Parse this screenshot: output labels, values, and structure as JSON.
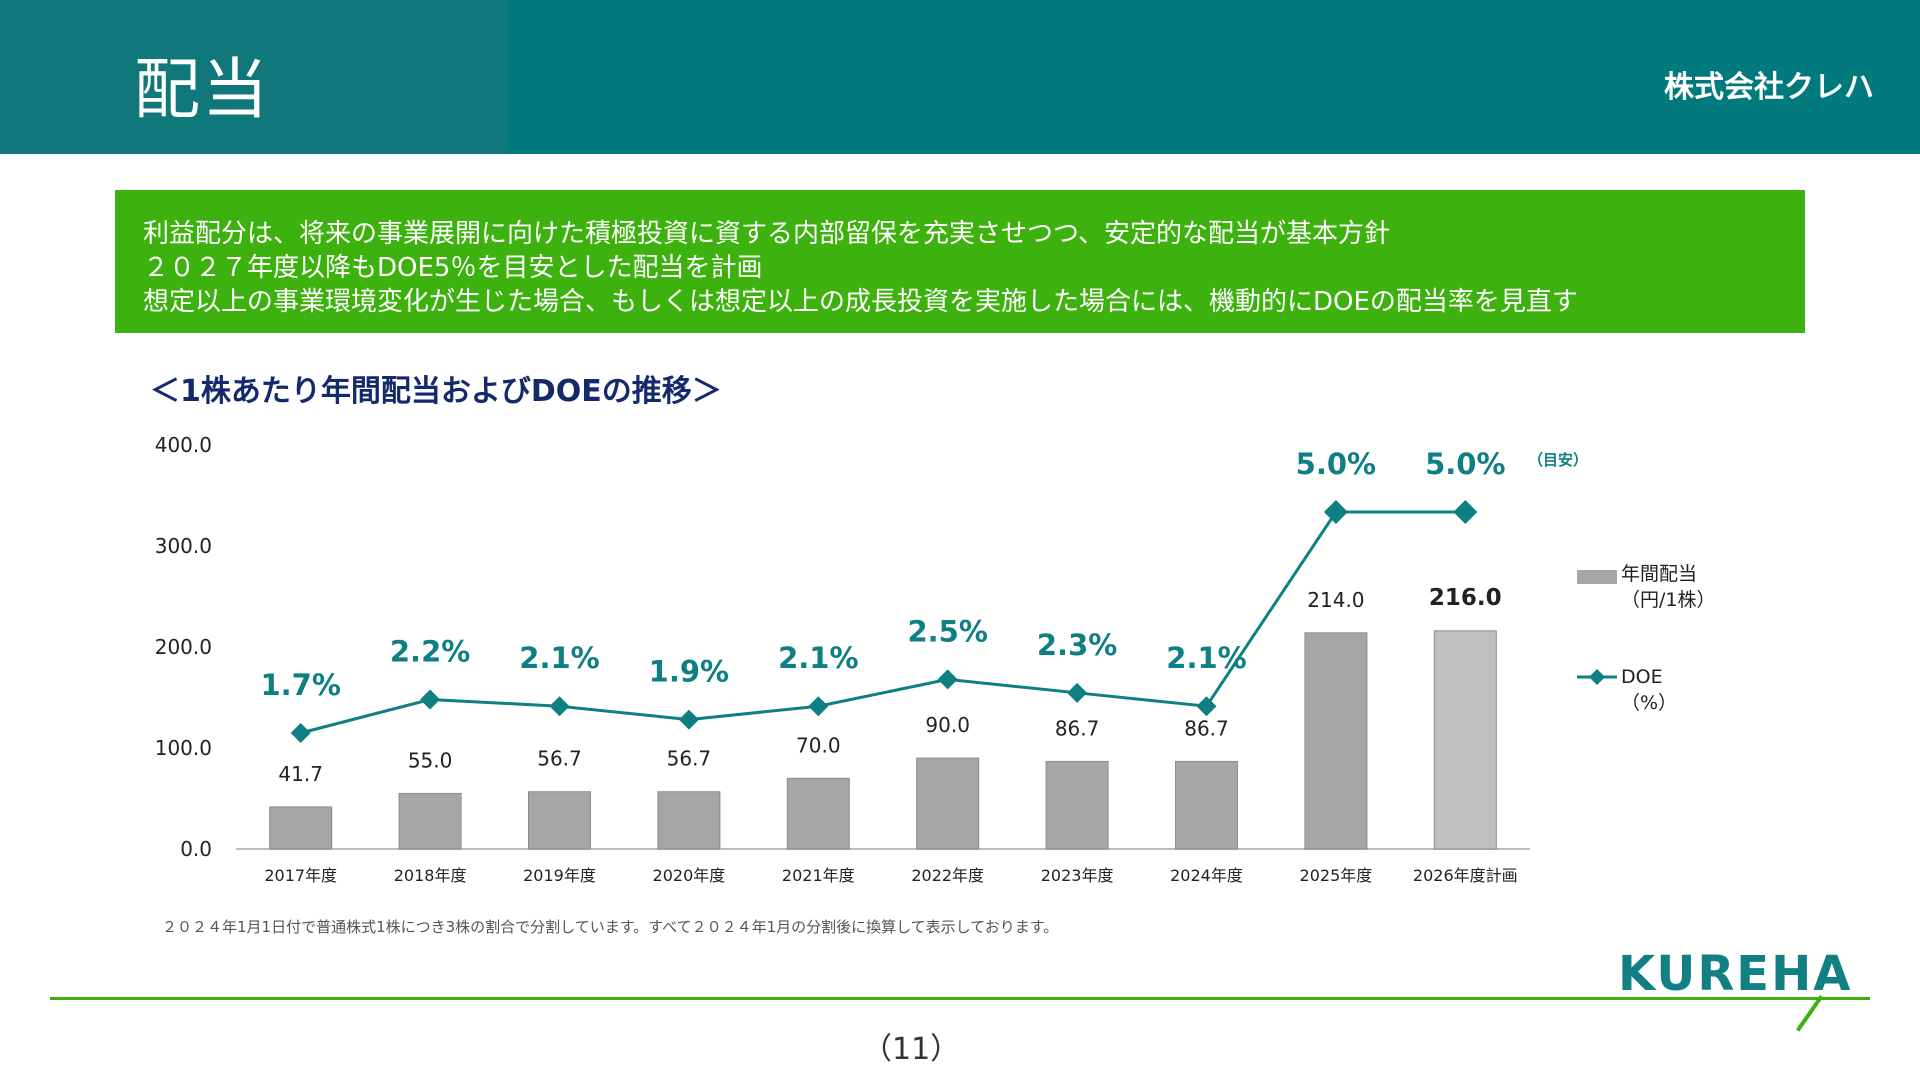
{
  "header": {
    "title": "配当",
    "company": "株式会社クレハ"
  },
  "policy": {
    "lines": [
      "利益配分は、将来の事業展開に向けた積極投資に資する内部留保を充実させつつ、安定的な配当が基本方針",
      "２０２７年度以降もDOE5％を目安とした配当を計画",
      "想定以上の事業環境変化が生じた場合、もしくは想定以上の成長投資を実施した場合には、機動的にDOEの配当率を見直す"
    ],
    "background": "#3db10e"
  },
  "chart_heading": "＜1株あたり年間配当およびDOEの推移＞",
  "chart_data": {
    "type": "bar",
    "categories": [
      "2017年度",
      "2018年度",
      "2019年度",
      "2020年度",
      "2021年度",
      "2022年度",
      "2023年度",
      "2024年度",
      "2025年度",
      "2026年度計画"
    ],
    "ylim": [
      0,
      400
    ],
    "yticks": [
      "0.0",
      "100.0",
      "200.0",
      "300.0",
      "400.0"
    ],
    "series": [
      {
        "name": "年間配当",
        "unit": "（円/1株）",
        "type": "bar",
        "values": [
          41.7,
          55.0,
          56.7,
          56.7,
          70.0,
          90.0,
          86.7,
          86.7,
          214.0,
          216.0
        ],
        "labels": [
          "41.7",
          "55.0",
          "56.7",
          "56.7",
          "70.0",
          "90.0",
          "86.7",
          "86.7",
          "214.0",
          "216.0"
        ],
        "color": "#a6a6a6",
        "highlight_color": "#bfbfbf"
      },
      {
        "name": "DOE",
        "unit": "（%）",
        "type": "line",
        "values": [
          1.7,
          2.2,
          2.1,
          1.9,
          2.1,
          2.5,
          2.3,
          2.1,
          5.0,
          5.0
        ],
        "labels": [
          "1.7%",
          "2.2%",
          "2.1%",
          "1.9%",
          "2.1%",
          "2.5%",
          "2.3%",
          "2.1%",
          "5.0%",
          "5.0%"
        ],
        "color": "#0e7f82"
      }
    ],
    "annotation": "（目安）",
    "legend_position": "right"
  },
  "footnote": "２０２４年1月1日付で普通株式1株につき3株の割合で分割しています。すべて２０２４年1月の分割後に換算して表示しております。",
  "logo_text": "KUREHA",
  "page_number": "（11）"
}
